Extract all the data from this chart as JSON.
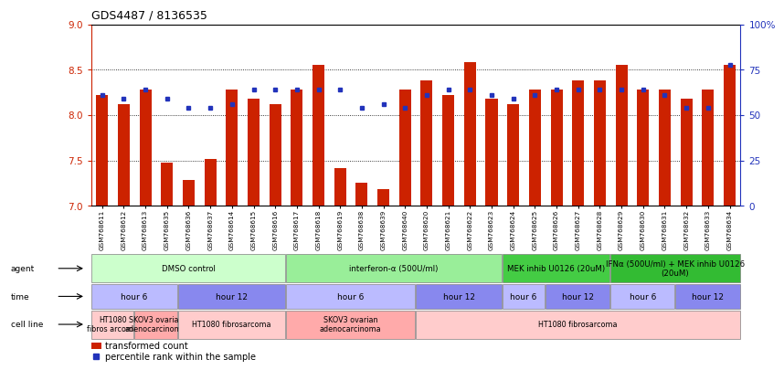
{
  "title": "GDS4487 / 8136535",
  "samples": [
    "GSM768611",
    "GSM768612",
    "GSM768613",
    "GSM768635",
    "GSM768636",
    "GSM768637",
    "GSM768614",
    "GSM768615",
    "GSM768616",
    "GSM768617",
    "GSM768618",
    "GSM768619",
    "GSM768638",
    "GSM768639",
    "GSM768640",
    "GSM768620",
    "GSM768621",
    "GSM768622",
    "GSM768623",
    "GSM768624",
    "GSM768625",
    "GSM768626",
    "GSM768627",
    "GSM768628",
    "GSM768629",
    "GSM768630",
    "GSM768631",
    "GSM768632",
    "GSM768633",
    "GSM768634"
  ],
  "bar_values": [
    8.22,
    8.12,
    8.28,
    7.48,
    7.28,
    7.52,
    8.28,
    8.18,
    8.12,
    8.28,
    8.55,
    7.42,
    7.25,
    7.18,
    8.28,
    8.38,
    8.22,
    8.58,
    8.18,
    8.12,
    8.28,
    8.28,
    8.38,
    8.38,
    8.55,
    8.28,
    8.28,
    8.18,
    8.28,
    8.55
  ],
  "percentile_y": [
    8.22,
    8.18,
    8.28,
    8.18,
    8.08,
    8.08,
    8.12,
    8.28,
    8.28,
    8.28,
    8.28,
    8.28,
    8.08,
    8.12,
    8.08,
    8.22,
    8.28,
    8.28,
    8.22,
    8.18,
    8.22,
    8.28,
    8.28,
    8.28,
    8.28,
    8.28,
    8.22,
    8.08,
    8.08,
    8.55
  ],
  "ymin": 7.0,
  "ymax": 9.0,
  "bar_color": "#cc2200",
  "marker_color": "#2233bb",
  "grid_values": [
    7.0,
    7.5,
    8.0,
    8.5,
    9.0
  ],
  "right_axis_ticks": [
    0,
    25,
    50,
    75,
    100
  ],
  "agent_groups": [
    {
      "label": "DMSO control",
      "start": 0,
      "end": 9,
      "color": "#ccffcc"
    },
    {
      "label": "interferon-α (500U/ml)",
      "start": 9,
      "end": 19,
      "color": "#99ee99"
    },
    {
      "label": "MEK inhib U0126 (20uM)",
      "start": 19,
      "end": 24,
      "color": "#44cc44"
    },
    {
      "label": "IFNα (500U/ml) + MEK inhib U0126\n(20uM)",
      "start": 24,
      "end": 30,
      "color": "#33bb33"
    }
  ],
  "time_groups": [
    {
      "label": "hour 6",
      "start": 0,
      "end": 4,
      "color": "#bbbbff"
    },
    {
      "label": "hour 12",
      "start": 4,
      "end": 9,
      "color": "#8888ee"
    },
    {
      "label": "hour 6",
      "start": 9,
      "end": 15,
      "color": "#bbbbff"
    },
    {
      "label": "hour 12",
      "start": 15,
      "end": 19,
      "color": "#8888ee"
    },
    {
      "label": "hour 6",
      "start": 19,
      "end": 21,
      "color": "#bbbbff"
    },
    {
      "label": "hour 12",
      "start": 21,
      "end": 24,
      "color": "#8888ee"
    },
    {
      "label": "hour 6",
      "start": 24,
      "end": 27,
      "color": "#bbbbff"
    },
    {
      "label": "hour 12",
      "start": 27,
      "end": 30,
      "color": "#8888ee"
    }
  ],
  "cell_groups": [
    {
      "label": "HT1080\nfibros arcoma",
      "start": 0,
      "end": 2,
      "color": "#ffcccc"
    },
    {
      "label": "SKOV3 ovarian\nadenocarcinoma",
      "start": 2,
      "end": 4,
      "color": "#ffaaaa"
    },
    {
      "label": "HT1080 fibrosarcoma",
      "start": 4,
      "end": 9,
      "color": "#ffcccc"
    },
    {
      "label": "SKOV3 ovarian\nadenocarcinoma",
      "start": 9,
      "end": 15,
      "color": "#ffaaaa"
    },
    {
      "label": "HT1080 fibrosarcoma",
      "start": 15,
      "end": 30,
      "color": "#ffcccc"
    }
  ],
  "bg_color": "#ffffff"
}
